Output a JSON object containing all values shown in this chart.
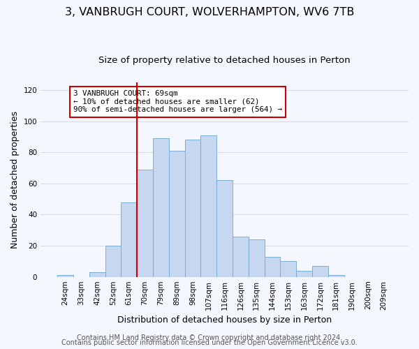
{
  "title": "3, VANBRUGH COURT, WOLVERHAMPTON, WV6 7TB",
  "subtitle": "Size of property relative to detached houses in Perton",
  "xlabel": "Distribution of detached houses by size in Perton",
  "ylabel": "Number of detached properties",
  "categories": [
    "24sqm",
    "33sqm",
    "42sqm",
    "52sqm",
    "61sqm",
    "70sqm",
    "79sqm",
    "89sqm",
    "98sqm",
    "107sqm",
    "116sqm",
    "126sqm",
    "135sqm",
    "144sqm",
    "153sqm",
    "163sqm",
    "172sqm",
    "181sqm",
    "190sqm",
    "200sqm",
    "209sqm"
  ],
  "values": [
    1,
    0,
    3,
    20,
    48,
    69,
    89,
    81,
    88,
    91,
    62,
    26,
    24,
    13,
    10,
    4,
    7,
    1,
    0,
    0,
    0
  ],
  "bar_color": "#c5d8f0",
  "bar_edge_color": "#7aadd4",
  "vline_x_index": 5,
  "vline_color": "#cc0000",
  "annotation_text": "3 VANBRUGH COURT: 69sqm\n← 10% of detached houses are smaller (62)\n90% of semi-detached houses are larger (564) →",
  "annotation_box_color": "#ffffff",
  "annotation_box_edge_color": "#cc0000",
  "ylim": [
    0,
    125
  ],
  "yticks": [
    0,
    20,
    40,
    60,
    80,
    100,
    120
  ],
  "footer_line1": "Contains HM Land Registry data © Crown copyright and database right 2024.",
  "footer_line2": "Contains public sector information licensed under the Open Government Licence v3.0.",
  "bg_color": "#f5f7ff",
  "plot_bg_color": "#f5f7ff",
  "grid_color": "#d8dce8",
  "title_fontsize": 11.5,
  "subtitle_fontsize": 9.5,
  "axis_label_fontsize": 9,
  "tick_fontsize": 7.5,
  "footer_fontsize": 7
}
